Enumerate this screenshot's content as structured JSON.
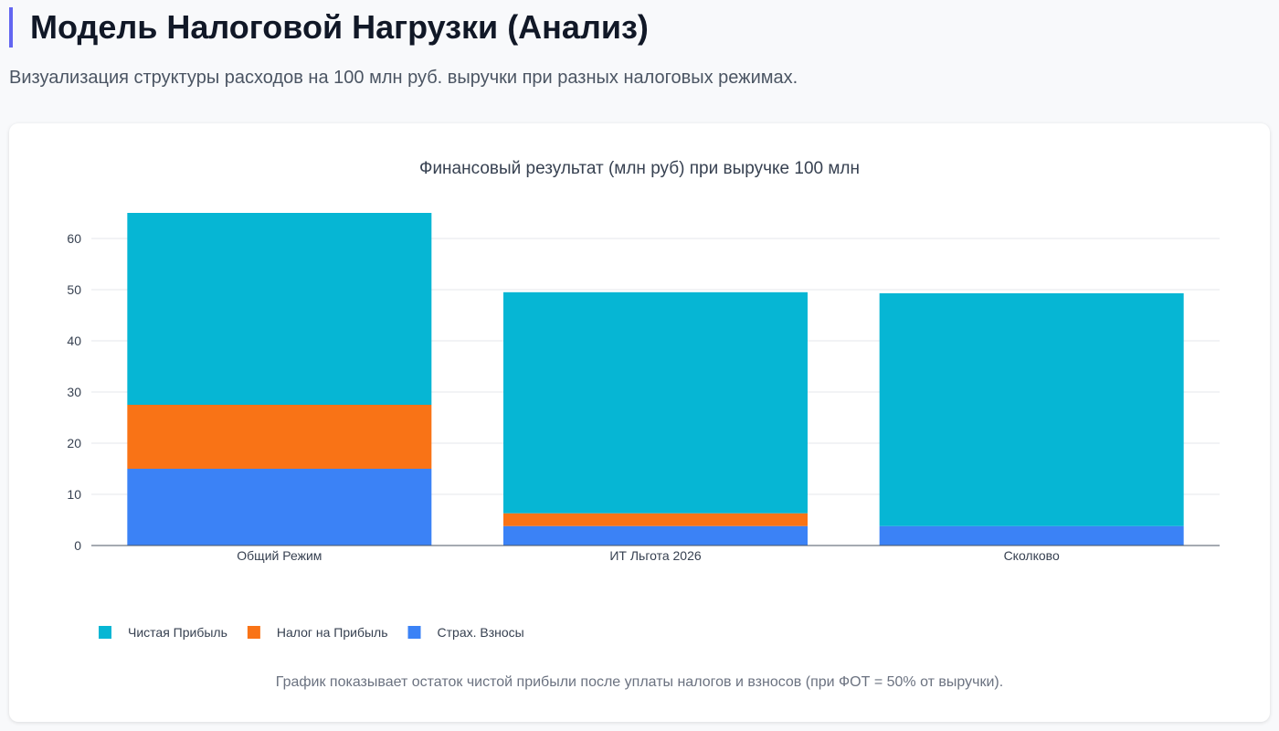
{
  "header": {
    "title": "Модель Налоговой Нагрузки (Анализ)",
    "subtitle": "Визуализация структуры расходов на 100 млн руб. выручки при разных налоговых режимах."
  },
  "footnote": "График показывает остаток чистой прибыли после уплаты налогов и взносов (при ФОТ = 50% от выручки).",
  "chart_data": {
    "type": "bar",
    "stacked": true,
    "title": "Финансовый результат (млн руб) при выручке 100 млн",
    "categories": [
      "Общий Режим",
      "ИТ Льгота 2026",
      "Сколково"
    ],
    "series": [
      {
        "name": "Страх. Взносы",
        "color": "#3b82f6",
        "values": [
          15,
          3.8,
          3.8
        ]
      },
      {
        "name": "Налог на Прибыль",
        "color": "#f97316",
        "values": [
          12.5,
          2.5,
          0
        ]
      },
      {
        "name": "Чистая Прибыль",
        "color": "#06b6d4",
        "values": [
          37.5,
          43.2,
          45.5
        ]
      }
    ],
    "legend_order": [
      "Чистая Прибыль",
      "Налог на Прибыль",
      "Страх. Взносы"
    ],
    "yticks": [
      0,
      10,
      20,
      30,
      40,
      50,
      60
    ],
    "ylim": [
      0,
      65
    ],
    "grid": true,
    "legend": "bottom-left"
  }
}
